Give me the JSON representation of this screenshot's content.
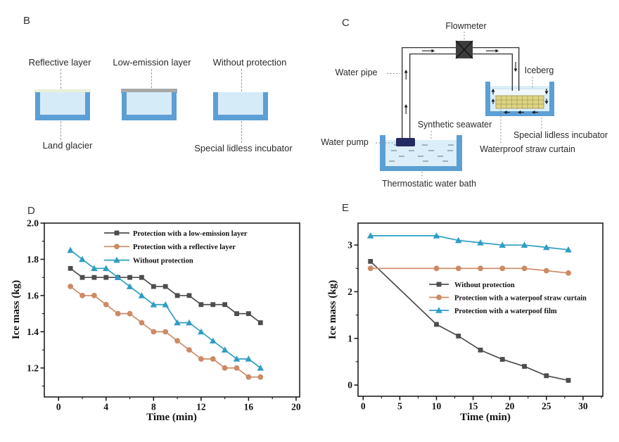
{
  "panel_b": {
    "letter": "B",
    "reflective_layer": "Reflective layer",
    "low_emission_layer": "Low-emission layer",
    "without_protection": "Without protection",
    "land_glacier": "Land glacier",
    "special_lidless_incubator": "Special lidless incubator"
  },
  "panel_c": {
    "letter": "C",
    "flowmeter": "Flowmeter",
    "water_pipe": "Water pipe",
    "iceberg": "Iceberg",
    "synthetic_seawater": "Synthetic seawater",
    "special_lidless_incubator": "Special lidless incubator",
    "water_pump": "Water pump",
    "waterproof_straw_curtain": "Waterproof straw curtain",
    "thermostatic_water_bath": "Thermostatic water bath"
  },
  "colors": {
    "series_gray": "#4d4d4d",
    "series_orange": "#cd8a65",
    "series_blue": "#2f9dc3",
    "tub_border_blue": "#5b9fd4",
    "tub_water_blue": "#d6ebf8",
    "reflective_layer_fill": "#e9efd9",
    "low_emission_layer_fill": "#a8a8a8",
    "water_pump_navy": "#232a63",
    "straw_curtain_yellow": "#ddd584",
    "flowmeter_dark": "#3d3d3d"
  },
  "chart_data": [
    {
      "panel_label": "D",
      "type": "line",
      "title": "",
      "xlabel": "Time (min)",
      "ylabel": "Ice mass (kg)",
      "xlim": [
        -1.2,
        20.3
      ],
      "ylim": [
        1.04,
        2.0
      ],
      "x_major_ticks": [
        0,
        4,
        8,
        12,
        16,
        20
      ],
      "x_minor_ticks": [
        2,
        6,
        10,
        14,
        18
      ],
      "y_major_ticks": [
        1.2,
        1.4,
        1.6,
        1.8,
        2.0
      ],
      "y_minor_ticks": [
        1.1,
        1.3,
        1.5,
        1.7,
        1.9
      ],
      "y_decimals": 1,
      "grid": false,
      "legend_position": "top-inside",
      "x": [
        1,
        2,
        3,
        4,
        5,
        6,
        7,
        8,
        9,
        10,
        11,
        12,
        13,
        14,
        15,
        16,
        17
      ],
      "series": [
        {
          "name": "Protection with a low-emission layer",
          "marker": "square",
          "color": "#4d4d4d",
          "values": [
            1.75,
            1.7,
            1.7,
            1.7,
            1.7,
            1.7,
            1.7,
            1.65,
            1.65,
            1.6,
            1.6,
            1.55,
            1.55,
            1.55,
            1.5,
            1.5,
            1.45
          ]
        },
        {
          "name": "Protection with a reflective layer",
          "marker": "circle",
          "color": "#cd8a65",
          "values": [
            1.65,
            1.6,
            1.6,
            1.55,
            1.5,
            1.5,
            1.45,
            1.4,
            1.4,
            1.35,
            1.3,
            1.25,
            1.25,
            1.2,
            1.2,
            1.15,
            1.15
          ]
        },
        {
          "name": "Without protection",
          "marker": "triangle",
          "color": "#2f9dc3",
          "values": [
            1.85,
            1.8,
            1.75,
            1.75,
            1.7,
            1.65,
            1.6,
            1.55,
            1.55,
            1.45,
            1.45,
            1.4,
            1.35,
            1.3,
            1.25,
            1.25,
            1.2
          ]
        }
      ]
    },
    {
      "panel_label": "E",
      "type": "line",
      "title": "",
      "xlabel": "Time (min)",
      "ylabel": "Ice mass (kg)",
      "xlim": [
        -0.7,
        32.7
      ],
      "ylim": [
        -0.24,
        3.47
      ],
      "x_major_ticks": [
        0,
        5,
        10,
        15,
        20,
        25,
        30
      ],
      "x_minor_ticks": [
        2.5,
        7.5,
        12.5,
        17.5,
        22.5,
        27.5,
        32.5
      ],
      "y_major_ticks": [
        0,
        1,
        2,
        3
      ],
      "y_minor_ticks": [
        0.5,
        1.5,
        2.5
      ],
      "y_decimals": 0,
      "grid": false,
      "legend_position": "middle-inside",
      "x": [
        1,
        10,
        13,
        16,
        19,
        22,
        25,
        28
      ],
      "series": [
        {
          "name": "Without protection",
          "marker": "square",
          "color": "#4d4d4d",
          "values": [
            2.65,
            1.3,
            1.05,
            0.75,
            0.55,
            0.4,
            0.2,
            0.1
          ]
        },
        {
          "name": "Protection with a waterpoof straw curtain",
          "marker": "circle",
          "color": "#cd8a65",
          "values": [
            2.5,
            2.5,
            2.5,
            2.5,
            2.5,
            2.5,
            2.45,
            2.4
          ]
        },
        {
          "name": "Protection with a waterpoof film",
          "marker": "triangle",
          "color": "#2f9dc3",
          "values": [
            3.2,
            3.2,
            3.1,
            3.05,
            3.0,
            3.0,
            2.95,
            2.9
          ]
        }
      ]
    }
  ]
}
